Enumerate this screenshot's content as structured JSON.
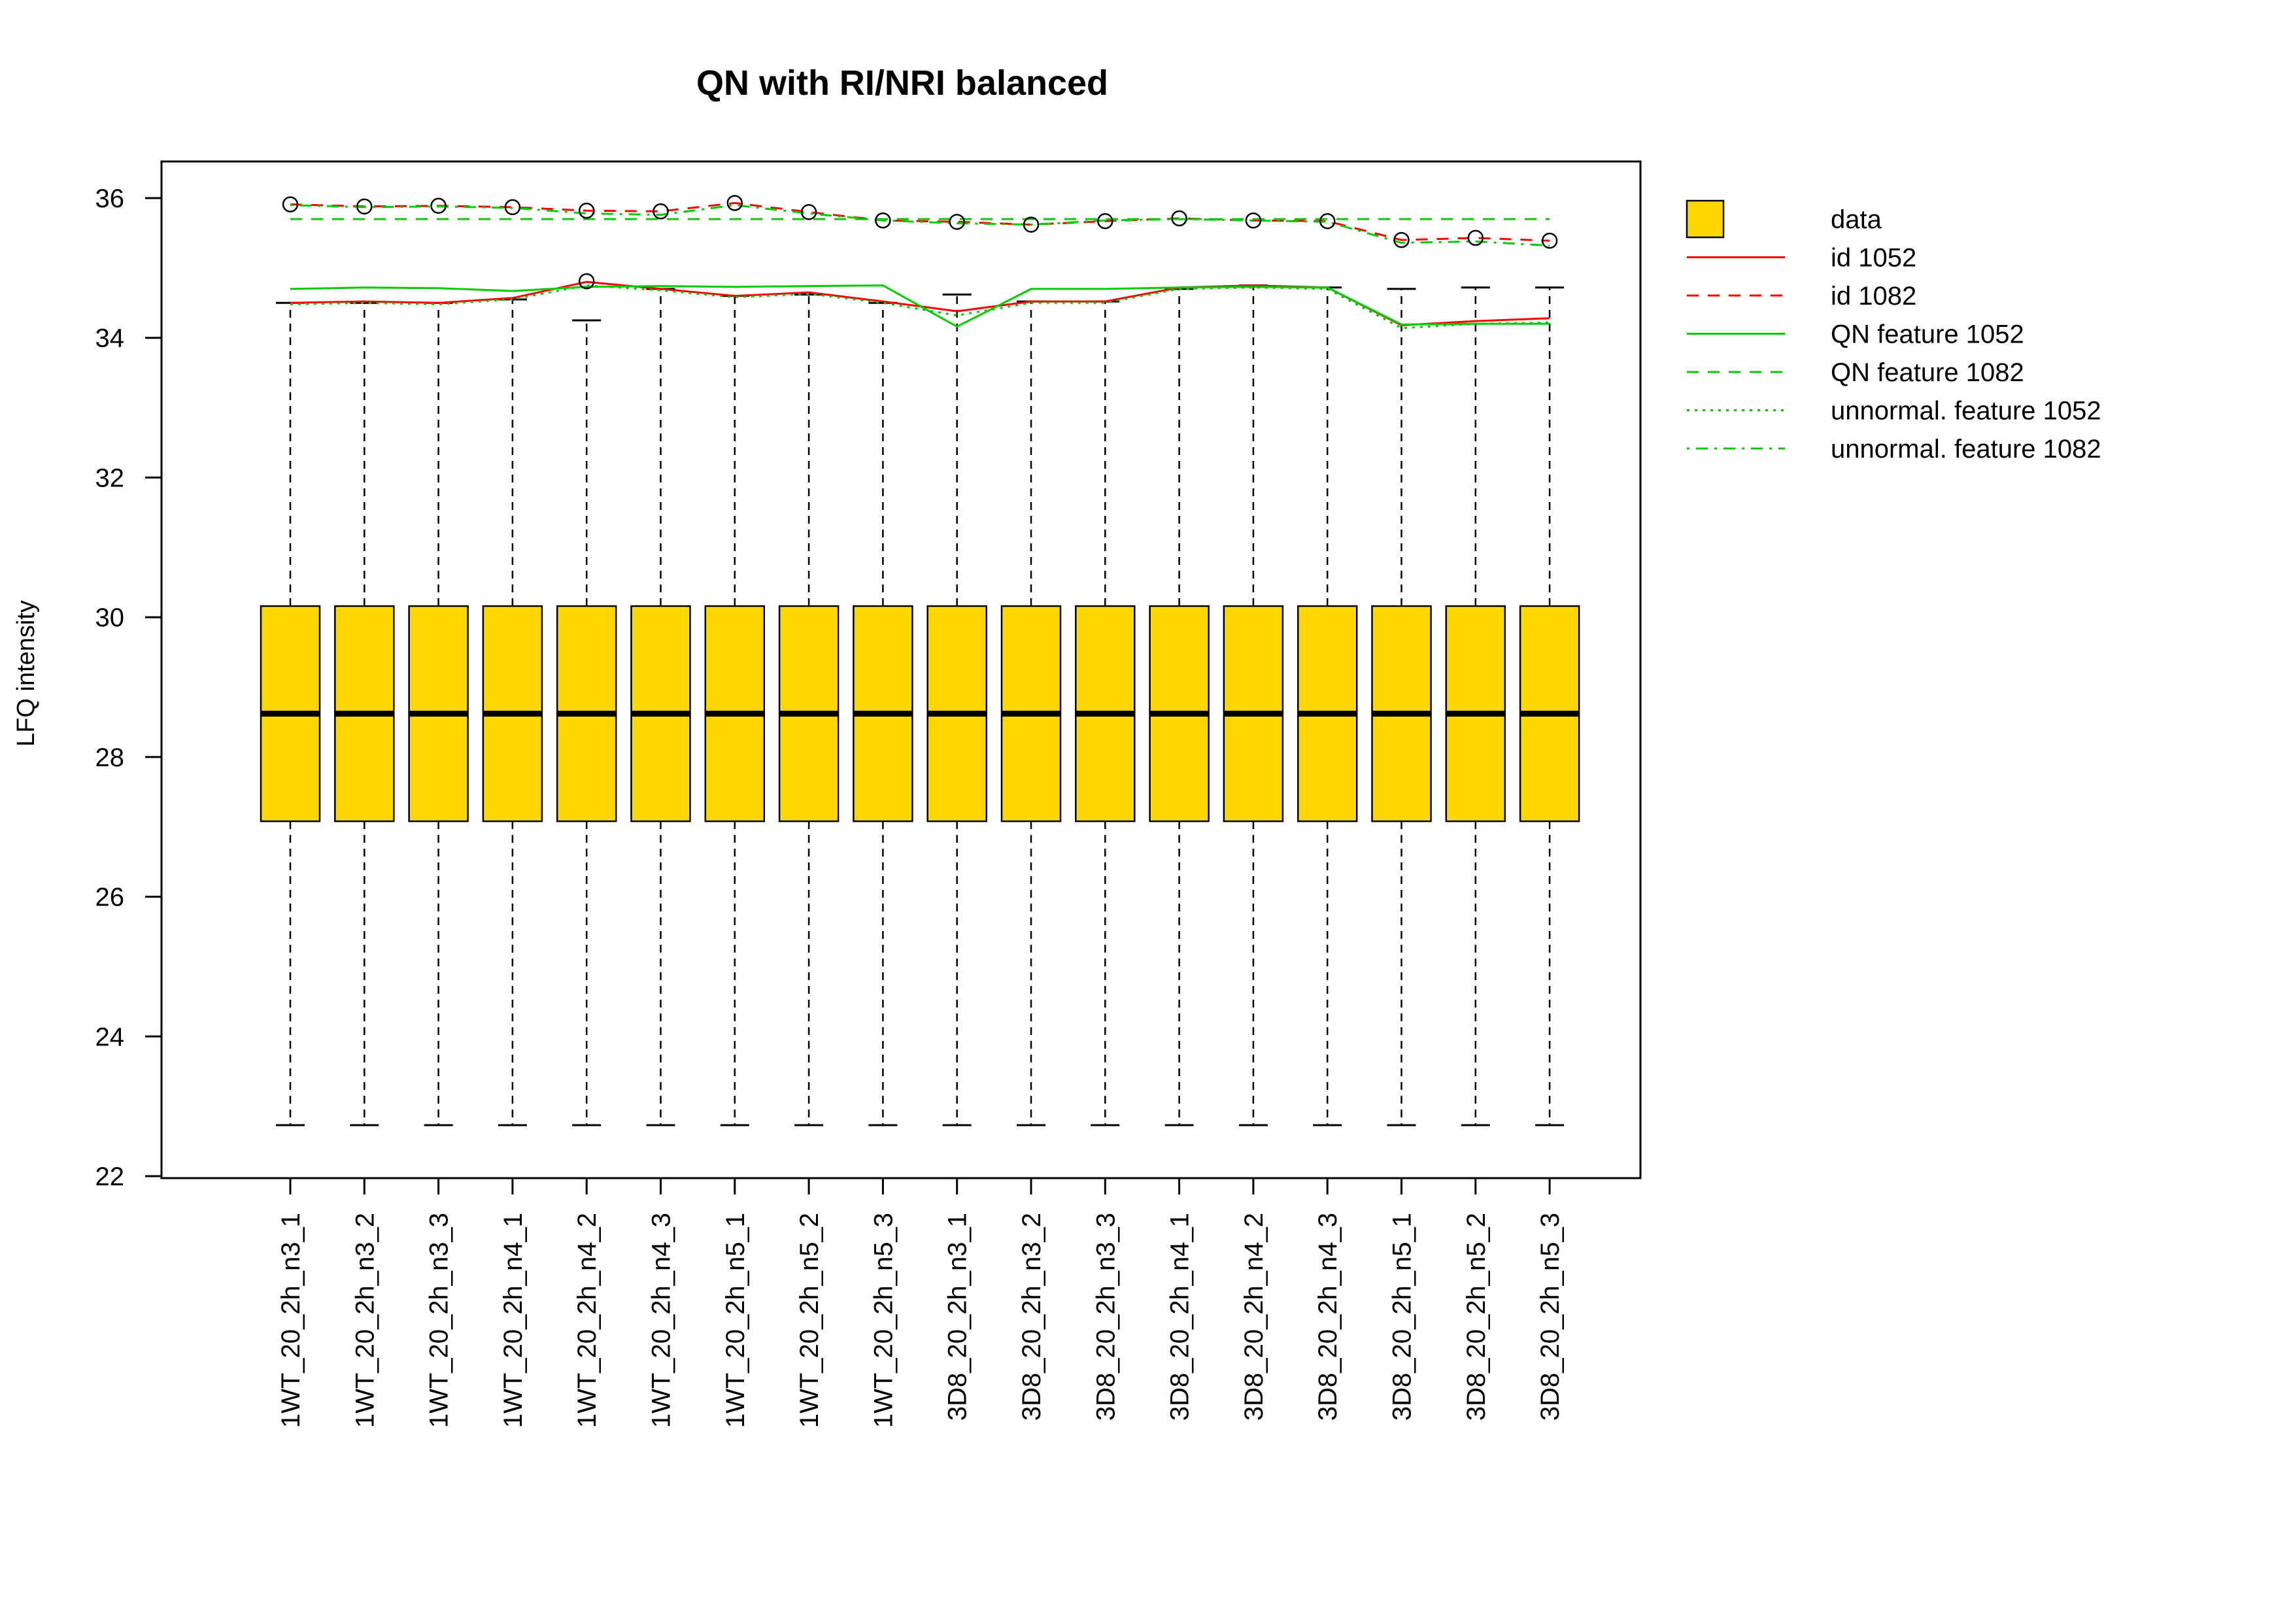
{
  "chart_data": {
    "type": "box",
    "title": "QN with RI/NRI balanced",
    "xlabel": "",
    "ylabel": "LFQ intensity",
    "ylim": [
      22,
      36.5
    ],
    "yticks": [
      22,
      24,
      26,
      28,
      30,
      32,
      34,
      36
    ],
    "categories": [
      "1WT_20_2h_n3_1",
      "1WT_20_2h_n3_2",
      "1WT_20_2h_n3_3",
      "1WT_20_2h_n4_1",
      "1WT_20_2h_n4_2",
      "1WT_20_2h_n4_3",
      "1WT_20_2h_n5_1",
      "1WT_20_2h_n5_2",
      "1WT_20_2h_n5_3",
      "3D8_20_2h_n3_1",
      "3D8_20_2h_n3_2",
      "3D8_20_2h_n3_3",
      "3D8_20_2h_n4_1",
      "3D8_20_2h_n4_2",
      "3D8_20_2h_n4_3",
      "3D8_20_2h_n5_1",
      "3D8_20_2h_n5_2",
      "3D8_20_2h_n5_3"
    ],
    "boxes": {
      "q1": [
        27.08,
        27.08,
        27.08,
        27.08,
        27.08,
        27.08,
        27.08,
        27.08,
        27.08,
        27.08,
        27.08,
        27.08,
        27.08,
        27.08,
        27.08,
        27.08,
        27.08,
        27.08
      ],
      "median": [
        28.62,
        28.62,
        28.62,
        28.62,
        28.62,
        28.62,
        28.62,
        28.62,
        28.62,
        28.62,
        28.62,
        28.62,
        28.62,
        28.62,
        28.62,
        28.62,
        28.62,
        28.62
      ],
      "q3": [
        30.16,
        30.16,
        30.16,
        30.16,
        30.16,
        30.16,
        30.16,
        30.16,
        30.16,
        30.16,
        30.16,
        30.16,
        30.16,
        30.16,
        30.16,
        30.16,
        30.16,
        30.16
      ],
      "whisker_low": [
        22.73,
        22.73,
        22.73,
        22.73,
        22.73,
        22.73,
        22.73,
        22.73,
        22.73,
        22.73,
        22.73,
        22.73,
        22.73,
        22.73,
        22.73,
        22.73,
        22.73,
        22.73
      ],
      "whisker_high": [
        34.5,
        34.5,
        34.5,
        34.55,
        34.25,
        34.7,
        34.6,
        34.62,
        34.5,
        34.62,
        34.52,
        34.52,
        34.7,
        34.75,
        34.72,
        34.7,
        34.72,
        34.72
      ],
      "outliers": [
        {
          "i": 0,
          "y": 35.91
        },
        {
          "i": 1,
          "y": 35.88
        },
        {
          "i": 2,
          "y": 35.89
        },
        {
          "i": 3,
          "y": 35.87
        },
        {
          "i": 4,
          "y": 35.82
        },
        {
          "i": 4,
          "y": 34.81
        },
        {
          "i": 5,
          "y": 35.81
        },
        {
          "i": 6,
          "y": 35.93
        },
        {
          "i": 7,
          "y": 35.8
        },
        {
          "i": 8,
          "y": 35.68
        },
        {
          "i": 9,
          "y": 35.66
        },
        {
          "i": 10,
          "y": 35.62
        },
        {
          "i": 11,
          "y": 35.67
        },
        {
          "i": 12,
          "y": 35.71
        },
        {
          "i": 13,
          "y": 35.68
        },
        {
          "i": 14,
          "y": 35.67
        },
        {
          "i": 15,
          "y": 35.4
        },
        {
          "i": 16,
          "y": 35.43
        },
        {
          "i": 17,
          "y": 35.39
        }
      ],
      "fill": "#FFD700"
    },
    "series": [
      {
        "name": "id 1052",
        "color": "#FF0000",
        "dash": "solid",
        "values": [
          34.5,
          34.52,
          34.5,
          34.57,
          34.8,
          34.7,
          34.6,
          34.65,
          34.52,
          34.38,
          34.52,
          34.52,
          34.72,
          34.75,
          34.72,
          34.18,
          34.24,
          34.28
        ]
      },
      {
        "name": "id 1082",
        "color": "#FF0000",
        "dash": "dashed",
        "values": [
          35.91,
          35.88,
          35.89,
          35.87,
          35.82,
          35.81,
          35.93,
          35.8,
          35.68,
          35.66,
          35.62,
          35.67,
          35.71,
          35.68,
          35.67,
          35.4,
          35.43,
          35.39
        ]
      },
      {
        "name": "QN feature 1052",
        "color": "#00CC00",
        "dash": "solid",
        "values": [
          34.7,
          34.72,
          34.71,
          34.67,
          34.73,
          34.74,
          34.73,
          34.74,
          34.75,
          34.16,
          34.7,
          34.7,
          34.72,
          34.73,
          34.72,
          34.19,
          34.2,
          34.2
        ]
      },
      {
        "name": "QN feature 1082",
        "color": "#00CC00",
        "dash": "dashed",
        "values": [
          35.7,
          35.7,
          35.7,
          35.7,
          35.7,
          35.7,
          35.7,
          35.7,
          35.7,
          35.7,
          35.7,
          35.7,
          35.7,
          35.7,
          35.7,
          35.7,
          35.7,
          35.7
        ]
      },
      {
        "name": "unnormal. feature 1052",
        "color": "#00CC00",
        "dash": "dotted",
        "values": [
          34.48,
          34.5,
          34.48,
          34.55,
          34.75,
          34.68,
          34.58,
          34.63,
          34.5,
          34.32,
          34.5,
          34.5,
          34.7,
          34.72,
          34.7,
          34.14,
          34.2,
          34.22
        ]
      },
      {
        "name": "unnormal. feature 1082",
        "color": "#00CC00",
        "dash": "dashdot",
        "values": [
          35.9,
          35.87,
          35.88,
          35.86,
          35.78,
          35.76,
          35.9,
          35.78,
          35.68,
          35.64,
          35.62,
          35.68,
          35.7,
          35.68,
          35.66,
          35.36,
          35.38,
          35.32
        ]
      }
    ],
    "legend": {
      "placement": "right",
      "entries": [
        {
          "label": "data",
          "kind": "box",
          "color": "#FFD700"
        },
        {
          "label": "id 1052",
          "kind": "line",
          "color": "#FF0000",
          "dash": "solid"
        },
        {
          "label": "id 1082",
          "kind": "line",
          "color": "#FF0000",
          "dash": "dashed"
        },
        {
          "label": "QN feature 1052",
          "kind": "line",
          "color": "#00CC00",
          "dash": "solid"
        },
        {
          "label": "QN feature 1082",
          "kind": "line",
          "color": "#00CC00",
          "dash": "dashed"
        },
        {
          "label": "unnormal. feature 1052",
          "kind": "line",
          "color": "#00CC00",
          "dash": "dotted"
        },
        {
          "label": "unnormal. feature 1082",
          "kind": "line",
          "color": "#00CC00",
          "dash": "dashdot"
        }
      ]
    },
    "grid": false
  }
}
